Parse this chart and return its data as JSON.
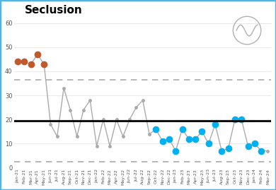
{
  "title": "Seclusion",
  "ylim": [
    0,
    62
  ],
  "yticks": [
    0,
    10,
    20,
    30,
    40,
    50,
    60
  ],
  "mean_line": 19.5,
  "upper_dashed": 36.5,
  "lower_dashed": 2.5,
  "x_labels": [
    "Jan-21",
    "Feb-21",
    "Mar-21",
    "Apr-21",
    "May-21",
    "Jun-21",
    "Jul-21",
    "Aug-21",
    "Sep-21",
    "Oct-21",
    "Nov-21",
    "Dec-21",
    "Jan-22",
    "Feb-22",
    "Mar-22",
    "Apr-22",
    "May-22",
    "Jun-22",
    "Jul-22",
    "Aug-22",
    "Sep-22",
    "Oct-22",
    "Nov-22",
    "Dec-22",
    "Jan-23",
    "Feb-23",
    "Mar-23",
    "Apr-23",
    "May-23",
    "Jun-23",
    "Jul-23",
    "Aug-23",
    "Sep-23",
    "Oct-23",
    "Nov-23",
    "Dec-23",
    "Jan-24",
    "Feb-24",
    "Mar-24"
  ],
  "values": [
    44,
    44,
    43,
    47,
    43,
    18,
    13,
    33,
    24,
    13,
    24,
    28,
    9,
    20,
    9,
    20,
    13,
    20,
    25,
    28,
    14,
    16,
    11,
    12,
    7,
    16,
    12,
    12,
    15,
    10,
    18,
    7,
    8,
    20,
    20,
    9,
    10,
    7,
    7
  ],
  "orange_indices": [
    0,
    1,
    2,
    3,
    4
  ],
  "blue_indices": [
    21,
    22,
    23,
    24,
    25,
    26,
    27,
    28,
    29,
    30,
    31,
    32,
    33,
    34,
    35,
    36,
    37
  ],
  "line_color": "#aaaaaa",
  "orange_color": "#c0592b",
  "blue_color": "#00b0f0",
  "mean_color": "#000000",
  "dashed_color": "#aaaaaa",
  "background": "#ffffff",
  "border_color": "#4db8e8"
}
